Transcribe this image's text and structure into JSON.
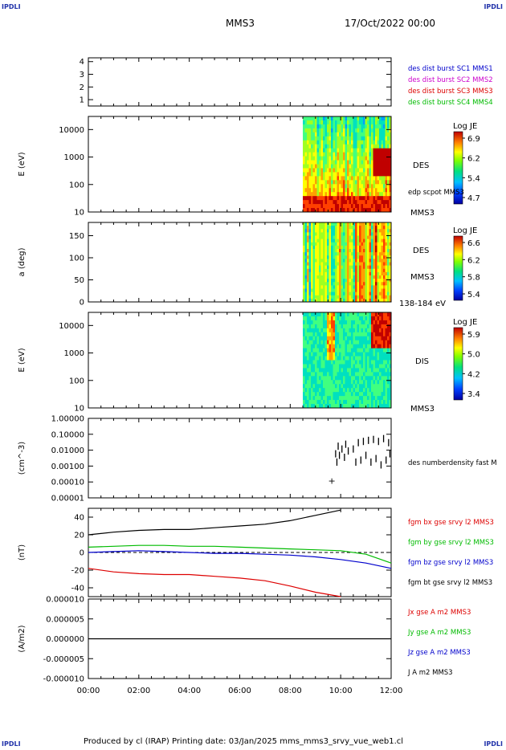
{
  "corner_label": "IPDLI",
  "header": {
    "spacecraft": "MMS3",
    "datetime": "17/Oct/2022 00:00"
  },
  "footer": {
    "text": "Produced by cl (IRAP)   Printing date: 03/Jan/2025   mms_mms3_srvy_vue_web1.cl"
  },
  "colors": {
    "mms1": "#0000cc",
    "mms2": "#cc00cc",
    "mms3": "#dd0000",
    "mms4": "#00bb00",
    "bx": "#dd0000",
    "by": "#00bb00",
    "bz": "#0000cc",
    "bt": "#000000"
  },
  "chart_data": [
    {
      "type": "line",
      "name": "burst_status",
      "ylim": [
        0.5,
        4.3
      ],
      "yticks": [
        "1",
        "2",
        "3",
        "4"
      ],
      "legend": [
        "des dist burst SC1 MMS1",
        "des dist burst SC2 MMS2",
        "des dist burst SC3 MMS3",
        "des dist burst SC4 MMS4"
      ]
    },
    {
      "type": "heatmap",
      "name": "des_energy",
      "ylabel": "E (eV)",
      "yscale": "log",
      "ylim": [
        10,
        30000
      ],
      "yticks": [
        "10",
        "100",
        "1000",
        "10000"
      ],
      "colorbar": {
        "title": "Log JE",
        "ticks": [
          "6.9",
          "6.2",
          "5.4",
          "4.7"
        ]
      },
      "labels": [
        "DES",
        "edp scpot MMS3",
        "MMS3"
      ],
      "data_start_hour": 8.5
    },
    {
      "type": "heatmap",
      "name": "des_pitch_angle",
      "ylabel": "a (deg)",
      "ylim": [
        0,
        180
      ],
      "yticks": [
        "0",
        "50",
        "100",
        "150"
      ],
      "colorbar": {
        "title": "Log JE",
        "ticks": [
          "6.6",
          "6.2",
          "5.8",
          "5.4"
        ]
      },
      "labels": [
        "DES",
        "MMS3",
        "138-184 eV"
      ],
      "data_start_hour": 8.5
    },
    {
      "type": "heatmap",
      "name": "dis_energy",
      "ylabel": "E (eV)",
      "yscale": "log",
      "ylim": [
        10,
        30000
      ],
      "yticks": [
        "10",
        "100",
        "1000",
        "10000"
      ],
      "colorbar": {
        "title": "Log JE",
        "ticks": [
          "5.9",
          "5.0",
          "4.2",
          "3.4"
        ]
      },
      "labels": [
        "DIS",
        "MMS3"
      ],
      "data_start_hour": 8.5
    },
    {
      "type": "scatter",
      "name": "density",
      "ylabel": "(cm^-3)",
      "yscale": "log",
      "ylim": [
        1e-05,
        1.0
      ],
      "yticks": [
        "1.00000",
        "0.10000",
        "0.01000",
        "0.00100",
        "0.00010",
        "0.00001"
      ],
      "legend": [
        "des numberdensity fast M"
      ],
      "series": [
        {
          "name": "des numberdensity fast M",
          "x": [
            9.8,
            9.85,
            9.9,
            9.95,
            10.05,
            10.15,
            10.2,
            10.3,
            10.5,
            10.6,
            10.7,
            10.8,
            10.9,
            11.0,
            11.1,
            11.2,
            11.3,
            11.4,
            11.5,
            11.6,
            11.7,
            11.8,
            11.9,
            11.95
          ],
          "y": [
            0.01,
            0.003,
            0.03,
            0.008,
            0.02,
            0.006,
            0.04,
            0.015,
            0.02,
            0.003,
            0.05,
            0.004,
            0.06,
            0.008,
            0.07,
            0.003,
            0.08,
            0.005,
            0.06,
            0.002,
            0.09,
            0.004,
            0.05,
            0.01
          ]
        },
        {
          "name": "marker",
          "x": [
            9.65
          ],
          "y": [
            0.00012
          ]
        }
      ]
    },
    {
      "type": "line",
      "name": "fgm",
      "ylabel": "(nT)",
      "ylim": [
        -50,
        50
      ],
      "yticks": [
        "40",
        "20",
        "0",
        "-20",
        "-40"
      ],
      "legend": [
        "fgm bx gse srvy l2 MMS3",
        "fgm by gse srvy l2 MMS3",
        "fgm bz gse srvy l2 MMS3",
        "fgm bt gse srvy l2 MMS3"
      ],
      "x": [
        0,
        1,
        2,
        3,
        4,
        5,
        6,
        7,
        8,
        9,
        10,
        11,
        12
      ],
      "series": [
        {
          "name": "fgm bt gse srvy l2 MMS3",
          "values": [
            20,
            23,
            25,
            26,
            26,
            28,
            30,
            32,
            36,
            42,
            48,
            null,
            null
          ]
        },
        {
          "name": "fgm by gse srvy l2 MMS3",
          "values": [
            6,
            7,
            8,
            8,
            7,
            7,
            6,
            5,
            4,
            3,
            2,
            -2,
            -12
          ]
        },
        {
          "name": "fgm bz gse srvy l2 MMS3",
          "values": [
            0,
            1,
            2,
            1,
            0,
            -1,
            -1,
            -2,
            -3,
            -5,
            -8,
            -12,
            -18
          ]
        },
        {
          "name": "fgm bx gse srvy l2 MMS3",
          "values": [
            -18,
            -22,
            -24,
            -25,
            -25,
            -27,
            -29,
            -32,
            -38,
            -45,
            -50,
            null,
            null
          ]
        }
      ]
    },
    {
      "type": "line",
      "name": "current_density",
      "ylabel": "(A/m2)",
      "ylim": [
        -1e-05,
        1e-05
      ],
      "yticks": [
        "0.000010",
        "0.000005",
        "0.000000",
        "-0.000005",
        "-0.000010"
      ],
      "legend": [
        "Jx gse A m2 MMS3",
        "Jy gse A m2 MMS3",
        "Jz gse A m2 MMS3",
        "J A m2 MMS3"
      ],
      "xlabel": "",
      "xticks": [
        "00:00",
        "02:00",
        "04:00",
        "06:00",
        "08:00",
        "10:00",
        "12:00"
      ]
    }
  ]
}
